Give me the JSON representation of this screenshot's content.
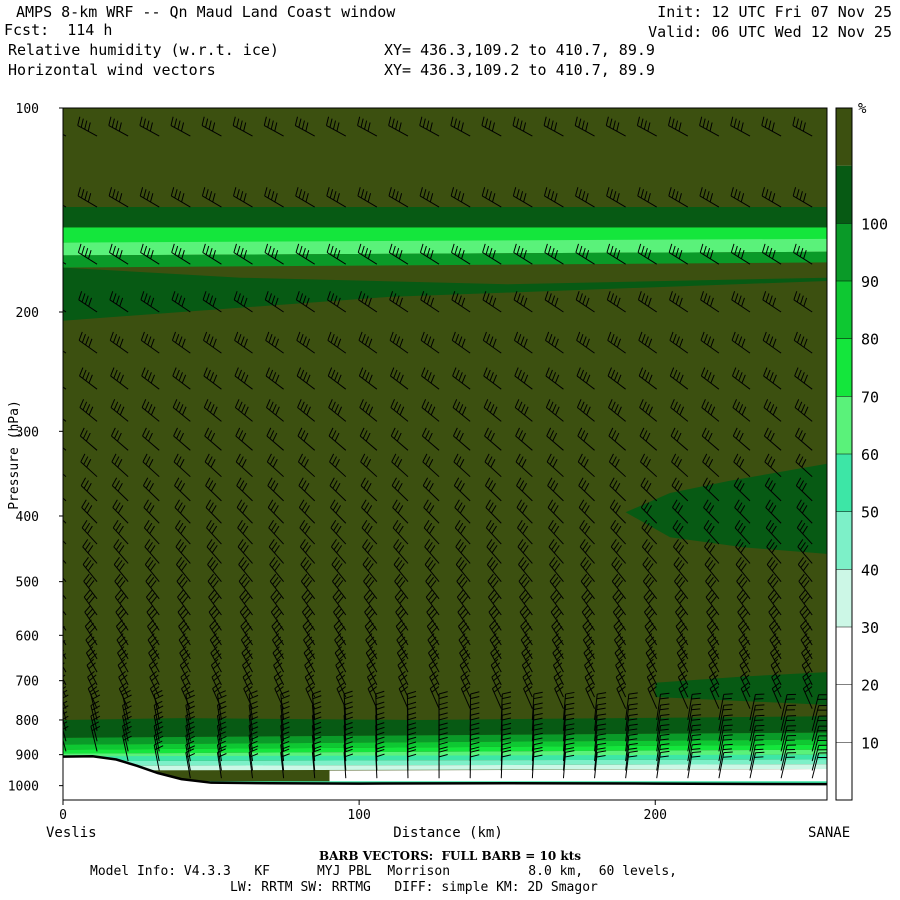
{
  "header": {
    "title": "AMPS 8-km WRF -- Qn Maud Land Coast window",
    "forecast": "Fcst:  114 h",
    "field1": "Relative humidity (w.r.t. ice)",
    "field2": "Horizontal wind vectors",
    "init": "Init: 12 UTC Fri 07 Nov 25",
    "valid": "Valid: 06 UTC Wed 12 Nov 25",
    "xy1": "XY= 436.3,109.2 to 410.7, 89.9",
    "xy2": "XY= 436.3,109.2 to 410.7, 89.9"
  },
  "footer": {
    "barb_note": "BARB VECTORS:  FULL BARB = 10 kts",
    "model_info_line1": "Model Info: V4.3.3   KF      MYJ PBL  Morrison          8.0 km,  60 levels,",
    "model_info_line2": "LW: RRTM SW: RRTMG   DIFF: simple KM: 2D Smagor"
  },
  "chart_data": {
    "type": "heatmap",
    "title": "Relative humidity (w.r.t. ice)",
    "xlabel": "Distance (km)",
    "ylabel": "Pressure (hPa)",
    "x_left_label": "Veslis",
    "x_right_label": "SANAE",
    "xlim": [
      0,
      258
    ],
    "ylim": [
      100,
      1050
    ],
    "y_scale": "log",
    "x_ticks": [
      0,
      100,
      200
    ],
    "y_ticks": [
      100,
      200,
      300,
      400,
      500,
      600,
      700,
      800,
      900,
      1000
    ],
    "colorbar": {
      "unit": "%",
      "levels": [
        10,
        20,
        30,
        40,
        50,
        60,
        70,
        80,
        90,
        100
      ],
      "colors": [
        "#ffffff",
        "#ffffff",
        "#ffffff",
        "#ccf7e6",
        "#7df0c8",
        "#3de6a6",
        "#5af27a",
        "#14e63c",
        "#0ec832",
        "#0a9a28",
        "#075a14",
        "#3c5010"
      ]
    },
    "terrain_surface": {
      "x": [
        0,
        10,
        18,
        25,
        32,
        40,
        50,
        70,
        100,
        150,
        200,
        258
      ],
      "p": [
        906,
        905,
        915,
        935,
        958,
        978,
        990,
        992,
        993,
        992,
        993,
        995
      ]
    },
    "rh_regions": [
      {
        "name": "moist_upper_cap",
        "p_range": [
          100,
          150
        ],
        "rh": 100
      },
      {
        "name": "dry_band_top",
        "p_range": [
          150,
          175
        ],
        "rh": 80
      },
      {
        "name": "moist_midlevel",
        "p_range": [
          175,
          790
        ],
        "rh": 100
      },
      {
        "name": "dry_pocket_400",
        "center_x": 220,
        "center_p": 395,
        "rh": 95
      },
      {
        "name": "transition_layer",
        "p_range": [
          790,
          900
        ],
        "rh": 85
      },
      {
        "name": "dry_boundary_layer",
        "p_range": [
          900,
          990
        ],
        "rh": 20
      }
    ],
    "wind_barbs": {
      "x_spacing_km": 10.5,
      "levels_hPa": [
        110,
        140,
        170,
        200,
        230,
        260,
        290,
        320,
        350,
        380,
        410,
        440,
        470,
        500,
        530,
        560,
        590,
        620,
        650,
        680,
        710,
        740,
        770,
        800,
        830,
        860,
        890,
        920,
        950,
        975
      ],
      "full_barb_kts": 10
    }
  }
}
